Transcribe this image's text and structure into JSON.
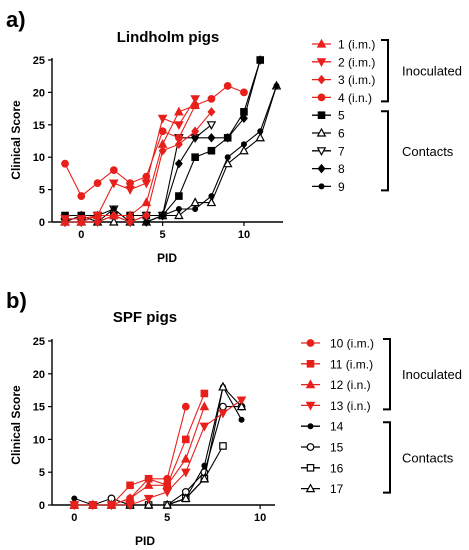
{
  "chart_data": [
    {
      "type": "line",
      "panel": "a)",
      "title": "Lindholm pigs",
      "xlabel": "PID",
      "ylabel": "Clinical Score",
      "xlim": [
        -1.8,
        12.4
      ],
      "ylim": [
        0,
        25
      ],
      "xticks": [
        0,
        5,
        10
      ],
      "yticks": [
        0,
        5,
        10,
        15,
        20,
        25
      ],
      "groups": [
        {
          "label": "Inoculated",
          "series_count": 4
        },
        {
          "label": "Contacts",
          "series_count": 5
        }
      ],
      "series": [
        {
          "name": "1 (i.m.)",
          "color": "#e8201c",
          "marker": "triangle-up",
          "filled": true,
          "x": [
            -1,
            0,
            1,
            2,
            3,
            4,
            5,
            6,
            7
          ],
          "y": [
            0,
            0,
            1,
            1,
            1,
            3,
            12,
            17,
            18
          ]
        },
        {
          "name": "2 (i.m.)",
          "color": "#e8201c",
          "marker": "triangle-down",
          "filled": true,
          "x": [
            -1,
            0,
            1,
            2,
            3,
            4,
            5,
            6,
            7
          ],
          "y": [
            0.5,
            0.5,
            1,
            6,
            5,
            6,
            16,
            15,
            19
          ]
        },
        {
          "name": "3 (i.m.)",
          "color": "#e8201c",
          "marker": "diamond",
          "filled": true,
          "x": [
            -1,
            0,
            1,
            2,
            3,
            4,
            5,
            6,
            7,
            8
          ],
          "y": [
            0,
            0,
            0,
            1,
            0,
            1,
            11,
            12,
            14,
            17
          ]
        },
        {
          "name": "4 (i.n.)",
          "color": "#e8201c",
          "marker": "circle",
          "filled": true,
          "x": [
            -1,
            0,
            1,
            2,
            3,
            4,
            5,
            6,
            7,
            8,
            9,
            10
          ],
          "y": [
            9,
            4,
            6,
            8,
            6,
            7,
            14,
            13,
            18,
            19,
            21,
            20
          ]
        },
        {
          "name": "5",
          "color": "#000000",
          "marker": "square",
          "filled": true,
          "x": [
            -1,
            0,
            1,
            2,
            3,
            4,
            5,
            6,
            7,
            8,
            9,
            10,
            11
          ],
          "y": [
            1,
            1,
            1,
            1,
            1,
            1,
            1,
            4,
            10,
            11,
            13,
            17,
            25
          ]
        },
        {
          "name": "6",
          "color": "#000000",
          "marker": "triangle-up",
          "filled": false,
          "x": [
            -1,
            0,
            1,
            2,
            3,
            4,
            5,
            6,
            7,
            8,
            9,
            10,
            11,
            12
          ],
          "y": [
            0,
            0,
            0,
            0,
            0,
            0,
            1,
            1,
            3,
            3,
            9,
            11,
            13,
            21
          ]
        },
        {
          "name": "7",
          "color": "#000000",
          "marker": "triangle-down",
          "filled": false,
          "x": [
            -1,
            0,
            1,
            2,
            3,
            4,
            5,
            6,
            7,
            8
          ],
          "y": [
            0,
            0,
            1,
            2,
            0,
            1,
            1,
            13,
            13,
            15
          ]
        },
        {
          "name": "8",
          "color": "#000000",
          "marker": "diamond",
          "filled": true,
          "x": [
            -1,
            0,
            1,
            2,
            3,
            4,
            5,
            6,
            7,
            8,
            9,
            10,
            11
          ],
          "y": [
            0,
            1,
            0,
            1,
            0,
            0,
            1,
            9,
            13,
            13,
            13,
            16,
            25
          ]
        },
        {
          "name": "9",
          "color": "#000000",
          "marker": "dot",
          "filled": true,
          "x": [
            -1,
            0,
            1,
            2,
            3,
            4,
            5,
            6,
            7,
            8,
            9,
            10,
            11,
            12
          ],
          "y": [
            0,
            0,
            0,
            2,
            0,
            0,
            1,
            2,
            2,
            4,
            10,
            12,
            14,
            21
          ]
        }
      ]
    },
    {
      "type": "line",
      "panel": "b)",
      "title": "SPF pigs",
      "xlabel": "PID",
      "ylabel": "Clinical Score",
      "xlim": [
        -1.2,
        10.8
      ],
      "ylim": [
        0,
        25
      ],
      "xticks": [
        0,
        5,
        10
      ],
      "yticks": [
        0,
        5,
        10,
        15,
        20,
        25
      ],
      "groups": [
        {
          "label": "Inoculated",
          "series_count": 4
        },
        {
          "label": "Contacts",
          "series_count": 4
        }
      ],
      "series": [
        {
          "name": "10 (i.m.)",
          "color": "#e8201c",
          "marker": "circle",
          "filled": true,
          "x": [
            0,
            1,
            2,
            3,
            4,
            5,
            6
          ],
          "y": [
            0,
            0,
            0,
            1,
            4,
            4,
            15
          ]
        },
        {
          "name": "11 (i.m.)",
          "color": "#e8201c",
          "marker": "square",
          "filled": true,
          "x": [
            0,
            1,
            2,
            3,
            4,
            5,
            6,
            7
          ],
          "y": [
            0,
            0,
            0,
            3,
            4,
            3,
            10,
            17
          ]
        },
        {
          "name": "12 (i.n.)",
          "color": "#e8201c",
          "marker": "triangle-up",
          "filled": true,
          "x": [
            0,
            1,
            2,
            3,
            4,
            5,
            6,
            7
          ],
          "y": [
            0,
            0,
            0,
            1,
            3,
            3,
            7,
            15
          ]
        },
        {
          "name": "13 (i.n.)",
          "color": "#e8201c",
          "marker": "triangle-down",
          "filled": true,
          "x": [
            0,
            1,
            2,
            3,
            4,
            5,
            6,
            7,
            8,
            9
          ],
          "y": [
            0,
            0,
            0,
            0,
            1,
            2,
            5,
            12,
            14,
            16
          ]
        },
        {
          "name": "14",
          "color": "#000000",
          "marker": "dot",
          "filled": true,
          "x": [
            0,
            1,
            2,
            3,
            4,
            5,
            6,
            7,
            8,
            9
          ],
          "y": [
            1,
            0,
            0,
            0,
            0,
            0,
            1,
            6,
            18,
            13
          ]
        },
        {
          "name": "15",
          "color": "#000000",
          "marker": "circle",
          "filled": false,
          "x": [
            0,
            1,
            2,
            3,
            4,
            5,
            6,
            7,
            8,
            9
          ],
          "y": [
            0,
            0,
            1,
            0,
            0,
            0,
            2,
            5,
            15,
            15
          ]
        },
        {
          "name": "16",
          "color": "#000000",
          "marker": "square",
          "filled": false,
          "x": [
            0,
            1,
            2,
            3,
            4,
            5,
            6,
            7,
            8
          ],
          "y": [
            0,
            0,
            0,
            0,
            0,
            0,
            1,
            4,
            9
          ]
        },
        {
          "name": "17",
          "color": "#000000",
          "marker": "triangle-up",
          "filled": false,
          "x": [
            0,
            1,
            2,
            3,
            4,
            5,
            6,
            7,
            8,
            9
          ],
          "y": [
            0,
            0,
            0,
            0,
            0,
            0,
            1,
            4,
            18,
            15
          ]
        }
      ]
    }
  ]
}
